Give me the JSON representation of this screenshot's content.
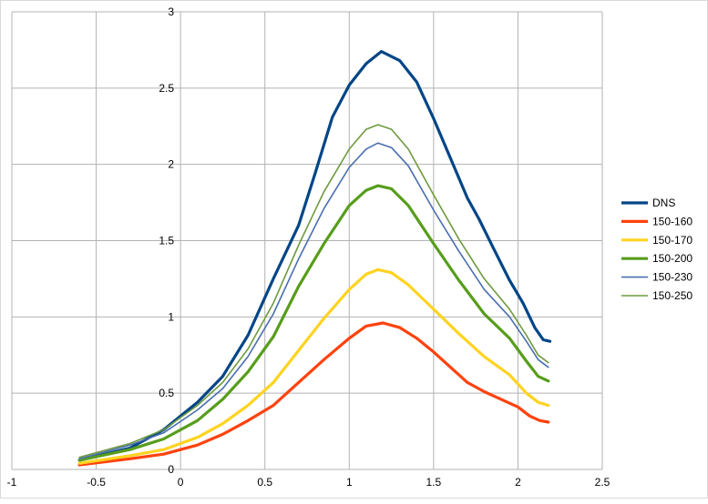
{
  "chart_data": {
    "type": "line",
    "title": "",
    "xlabel": "",
    "ylabel": "",
    "xlim": [
      -1,
      2.5
    ],
    "ylim": [
      0,
      3
    ],
    "x_ticks": [
      "-1",
      "-0.5",
      "0",
      "0.5",
      "1",
      "1.5",
      "2",
      "2.5"
    ],
    "y_ticks": [
      "0",
      "0.5",
      "1",
      "1.5",
      "2",
      "2.5",
      "3"
    ],
    "grid": "horizontal and vertical major gridlines",
    "legend_position": "right",
    "series": [
      {
        "name": "DNS",
        "color": "#004586",
        "weight": "thick",
        "points": [
          [
            -0.6,
            0.06
          ],
          [
            -0.3,
            0.14
          ],
          [
            -0.1,
            0.26
          ],
          [
            0.1,
            0.44
          ],
          [
            0.25,
            0.61
          ],
          [
            0.4,
            0.88
          ],
          [
            0.55,
            1.25
          ],
          [
            0.7,
            1.6
          ],
          [
            0.8,
            1.95
          ],
          [
            0.9,
            2.31
          ],
          [
            1.0,
            2.52
          ],
          [
            1.1,
            2.66
          ],
          [
            1.19,
            2.74
          ],
          [
            1.3,
            2.68
          ],
          [
            1.4,
            2.54
          ],
          [
            1.5,
            2.3
          ],
          [
            1.6,
            2.04
          ],
          [
            1.7,
            1.78
          ],
          [
            1.77,
            1.64
          ],
          [
            1.85,
            1.46
          ],
          [
            1.95,
            1.24
          ],
          [
            2.03,
            1.09
          ],
          [
            2.1,
            0.93
          ],
          [
            2.15,
            0.85
          ],
          [
            2.19,
            0.84
          ]
        ]
      },
      {
        "name": "150-160",
        "color": "#ff420e",
        "weight": "thick",
        "points": [
          [
            -0.6,
            0.03
          ],
          [
            -0.3,
            0.07
          ],
          [
            -0.1,
            0.1
          ],
          [
            0.1,
            0.16
          ],
          [
            0.25,
            0.23
          ],
          [
            0.4,
            0.32
          ],
          [
            0.55,
            0.42
          ],
          [
            0.7,
            0.57
          ],
          [
            0.85,
            0.72
          ],
          [
            1.0,
            0.86
          ],
          [
            1.1,
            0.94
          ],
          [
            1.2,
            0.96
          ],
          [
            1.3,
            0.93
          ],
          [
            1.4,
            0.86
          ],
          [
            1.5,
            0.77
          ],
          [
            1.6,
            0.67
          ],
          [
            1.7,
            0.57
          ],
          [
            1.8,
            0.51
          ],
          [
            1.9,
            0.46
          ],
          [
            2.0,
            0.41
          ],
          [
            2.07,
            0.35
          ],
          [
            2.13,
            0.32
          ],
          [
            2.18,
            0.31
          ]
        ]
      },
      {
        "name": "150-170",
        "color": "#ffd320",
        "weight": "thick",
        "points": [
          [
            -0.6,
            0.04
          ],
          [
            -0.3,
            0.09
          ],
          [
            -0.1,
            0.13
          ],
          [
            0.1,
            0.21
          ],
          [
            0.25,
            0.3
          ],
          [
            0.4,
            0.42
          ],
          [
            0.55,
            0.57
          ],
          [
            0.7,
            0.78
          ],
          [
            0.85,
            0.99
          ],
          [
            1.0,
            1.18
          ],
          [
            1.1,
            1.28
          ],
          [
            1.17,
            1.31
          ],
          [
            1.25,
            1.29
          ],
          [
            1.35,
            1.21
          ],
          [
            1.5,
            1.05
          ],
          [
            1.65,
            0.89
          ],
          [
            1.8,
            0.74
          ],
          [
            1.95,
            0.62
          ],
          [
            2.05,
            0.5
          ],
          [
            2.12,
            0.44
          ],
          [
            2.18,
            0.42
          ]
        ]
      },
      {
        "name": "150-200",
        "color": "#579d1c",
        "weight": "thick",
        "points": [
          [
            -0.6,
            0.06
          ],
          [
            -0.3,
            0.13
          ],
          [
            -0.1,
            0.2
          ],
          [
            0.1,
            0.32
          ],
          [
            0.25,
            0.46
          ],
          [
            0.4,
            0.64
          ],
          [
            0.55,
            0.87
          ],
          [
            0.7,
            1.2
          ],
          [
            0.85,
            1.48
          ],
          [
            1.0,
            1.73
          ],
          [
            1.1,
            1.83
          ],
          [
            1.17,
            1.86
          ],
          [
            1.25,
            1.84
          ],
          [
            1.35,
            1.73
          ],
          [
            1.5,
            1.48
          ],
          [
            1.65,
            1.24
          ],
          [
            1.8,
            1.02
          ],
          [
            1.95,
            0.86
          ],
          [
            2.05,
            0.71
          ],
          [
            2.12,
            0.61
          ],
          [
            2.18,
            0.58
          ]
        ]
      },
      {
        "name": "150-230",
        "color": "#4a6eb0",
        "weight": "thin",
        "points": [
          [
            -0.6,
            0.07
          ],
          [
            -0.3,
            0.16
          ],
          [
            -0.1,
            0.24
          ],
          [
            0.1,
            0.39
          ],
          [
            0.25,
            0.53
          ],
          [
            0.4,
            0.74
          ],
          [
            0.55,
            1.02
          ],
          [
            0.7,
            1.38
          ],
          [
            0.85,
            1.71
          ],
          [
            1.0,
            1.98
          ],
          [
            1.1,
            2.1
          ],
          [
            1.17,
            2.14
          ],
          [
            1.25,
            2.11
          ],
          [
            1.35,
            1.99
          ],
          [
            1.5,
            1.7
          ],
          [
            1.65,
            1.43
          ],
          [
            1.8,
            1.18
          ],
          [
            1.95,
            1.0
          ],
          [
            2.05,
            0.84
          ],
          [
            2.12,
            0.72
          ],
          [
            2.18,
            0.67
          ]
        ]
      },
      {
        "name": "150-250",
        "color": "#6e9a3e",
        "weight": "thin",
        "points": [
          [
            -0.6,
            0.08
          ],
          [
            -0.3,
            0.17
          ],
          [
            -0.1,
            0.26
          ],
          [
            0.1,
            0.42
          ],
          [
            0.25,
            0.57
          ],
          [
            0.4,
            0.79
          ],
          [
            0.55,
            1.09
          ],
          [
            0.7,
            1.47
          ],
          [
            0.85,
            1.82
          ],
          [
            1.0,
            2.1
          ],
          [
            1.1,
            2.23
          ],
          [
            1.17,
            2.26
          ],
          [
            1.25,
            2.23
          ],
          [
            1.35,
            2.1
          ],
          [
            1.5,
            1.8
          ],
          [
            1.65,
            1.51
          ],
          [
            1.8,
            1.25
          ],
          [
            1.95,
            1.05
          ],
          [
            2.05,
            0.88
          ],
          [
            2.12,
            0.75
          ],
          [
            2.18,
            0.7
          ]
        ]
      }
    ]
  }
}
